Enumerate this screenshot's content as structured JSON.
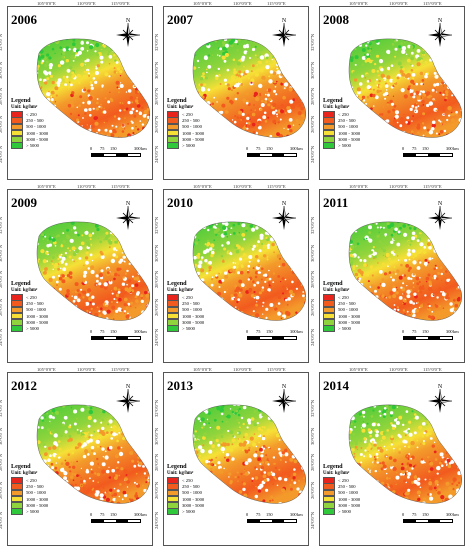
{
  "panels": [
    {
      "year": "2006"
    },
    {
      "year": "2007"
    },
    {
      "year": "2008"
    },
    {
      "year": "2009"
    },
    {
      "year": "2010"
    },
    {
      "year": "2011"
    },
    {
      "year": "2012"
    },
    {
      "year": "2013"
    },
    {
      "year": "2014"
    }
  ],
  "common": {
    "lon_labels": [
      "105°0'0\"E",
      "110°0'0\"E",
      "115°0'0\"E"
    ],
    "lat_labels": [
      "32°0'0\"N",
      "30°0'0\"N",
      "28°0'0\"N",
      "26°0'0\"N",
      "24°0'0\"N"
    ],
    "north": "N",
    "legend": {
      "title": "Legend",
      "unit": "Unit:  kg/hm²",
      "classes": [
        {
          "label": "< 250",
          "color": "#e8241c"
        },
        {
          "label": "250 - 500",
          "color": "#f25a1e"
        },
        {
          "label": "500 - 1000",
          "color": "#f39a2b"
        },
        {
          "label": "1000 - 3000",
          "color": "#f6e036"
        },
        {
          "label": "3000 - 5000",
          "color": "#8fd43c"
        },
        {
          "label": "> 5000",
          "color": "#2ec83a"
        }
      ]
    },
    "scale": {
      "ticks": [
        "0",
        "75",
        "150",
        "300"
      ],
      "unit": "km"
    }
  }
}
